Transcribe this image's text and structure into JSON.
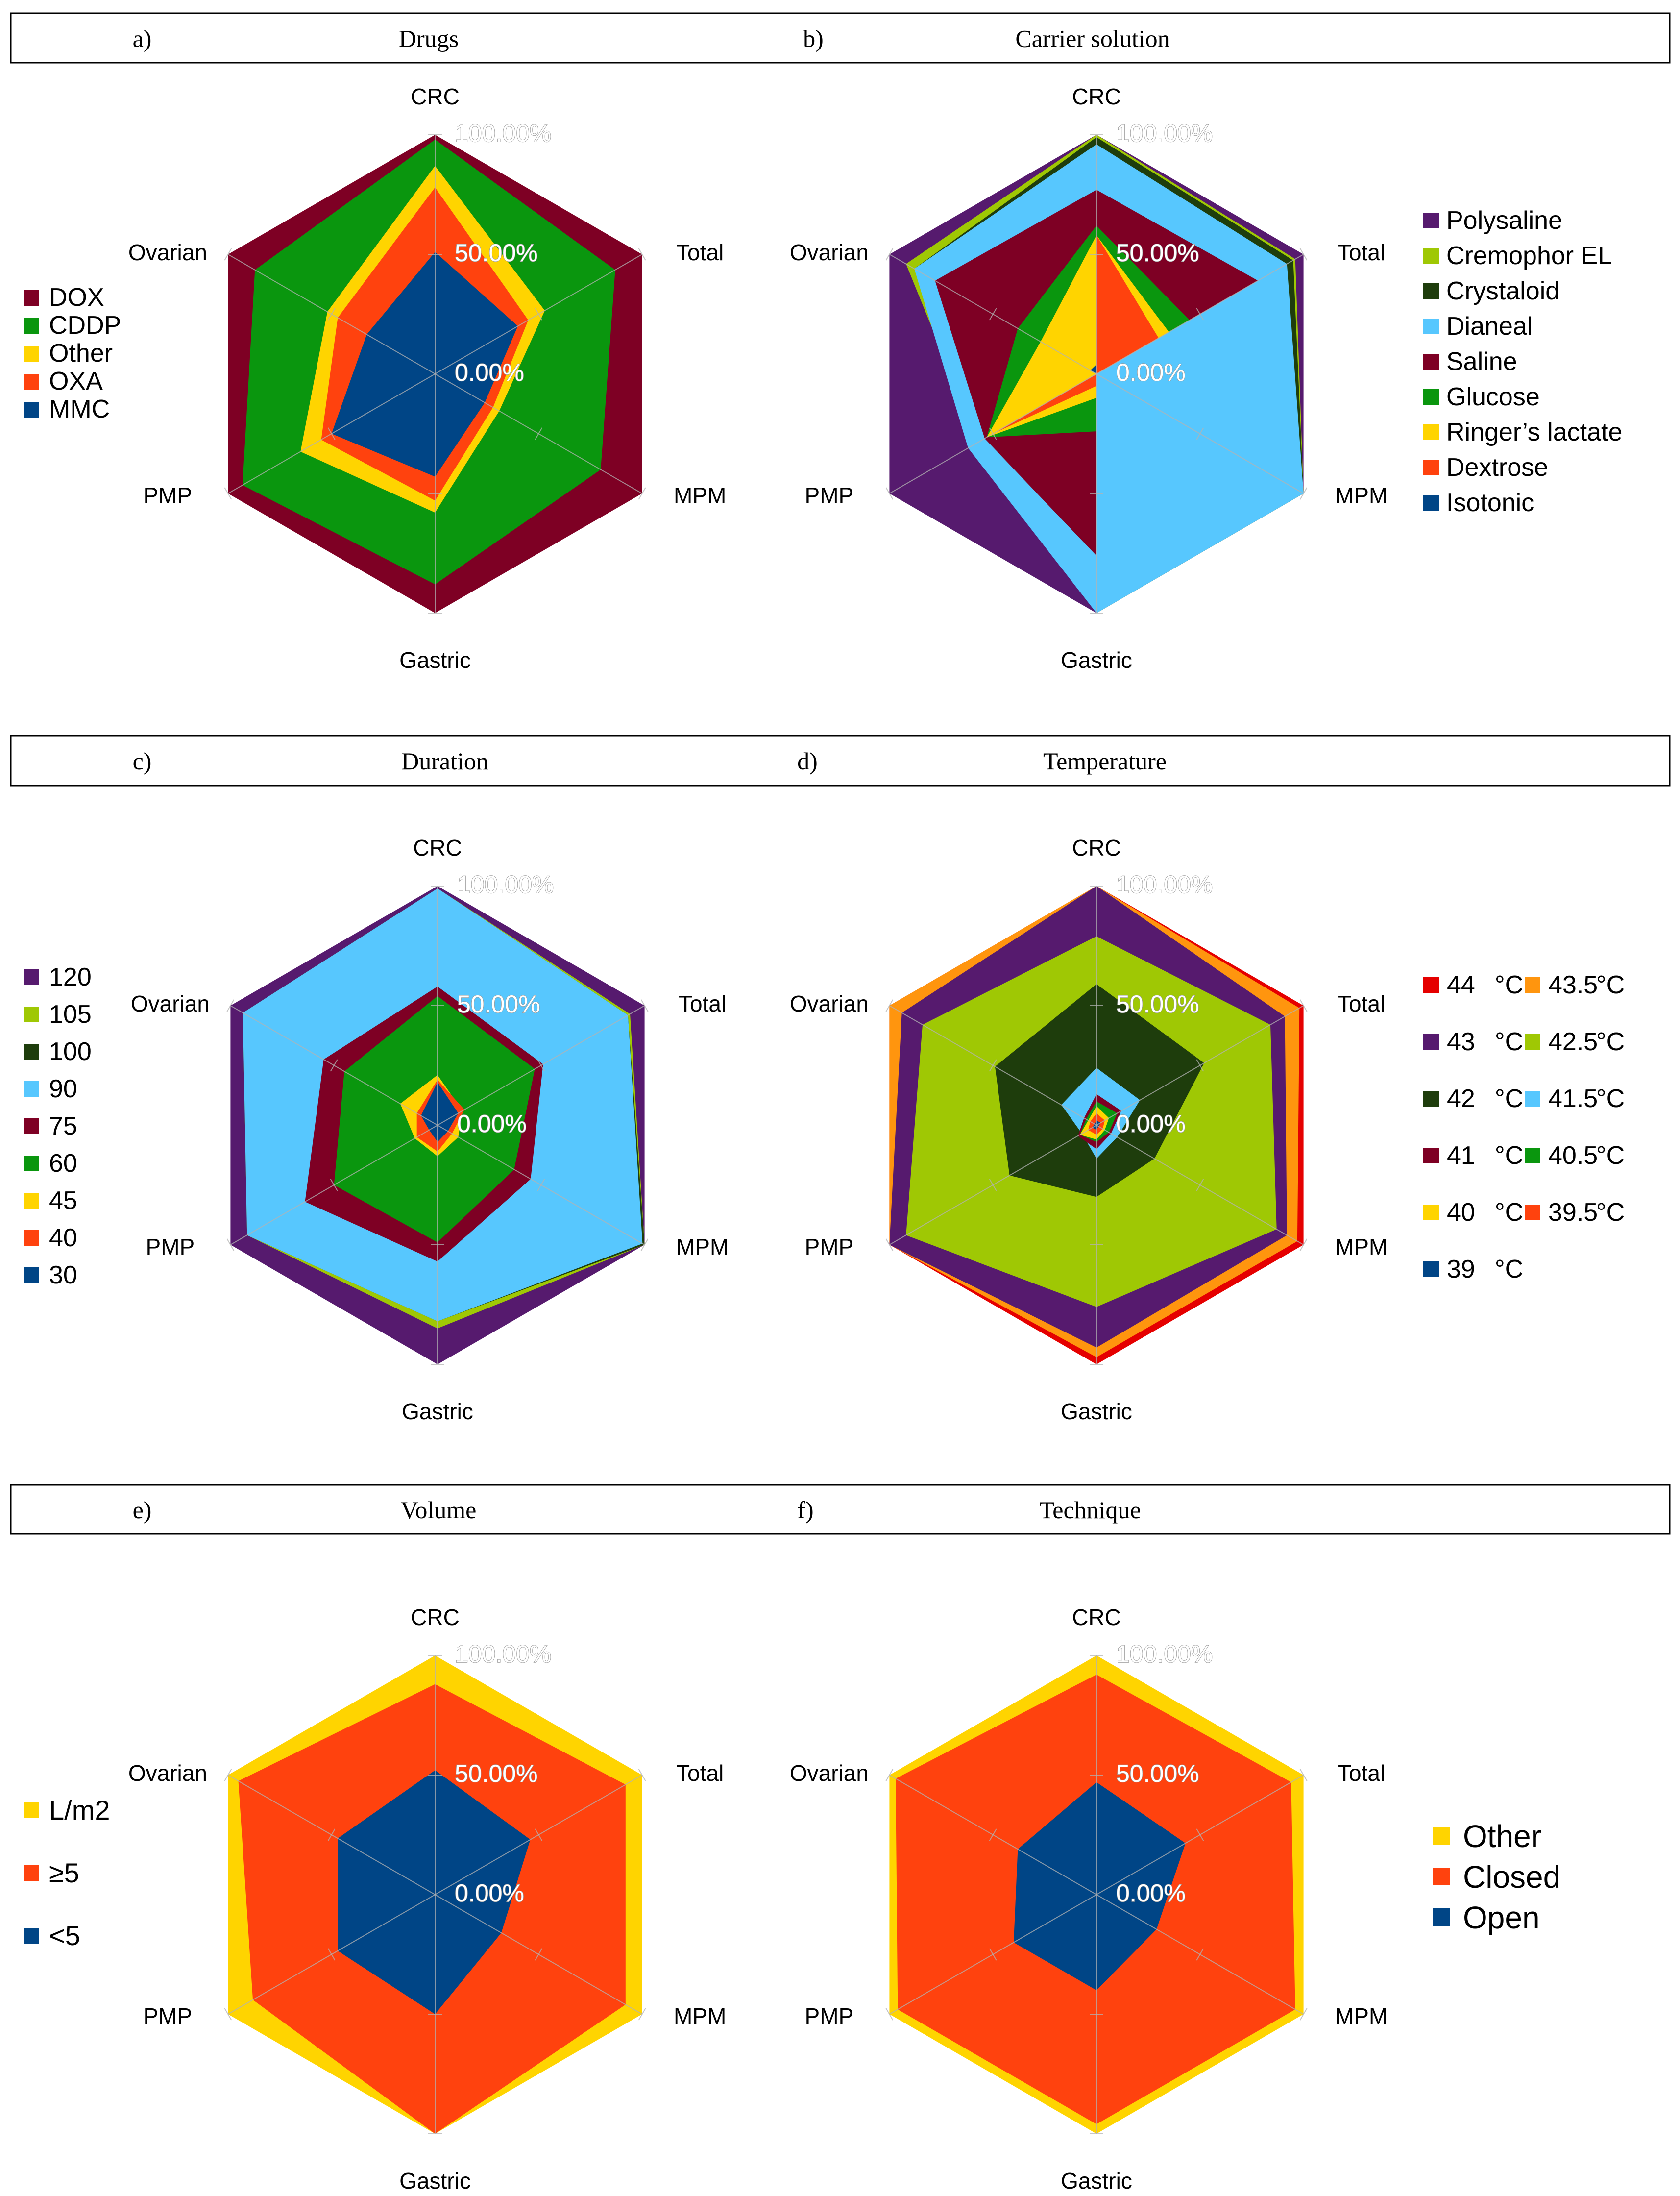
{
  "colors": {
    "purple": "#561a6e",
    "lime": "#9fc804",
    "darkgreen": "#1e3d0c",
    "skyblue": "#57c7fe",
    "darkred": "#7e0024",
    "green": "#0a960e",
    "yellow": "#ffd400",
    "orangered": "#ff420e",
    "navy": "#004586",
    "red": "#e50000",
    "orange": "#ff950e"
  },
  "chart_data": [
    {
      "type": "radar",
      "panel_label": "a)",
      "title": "Drugs",
      "axes": [
        "CRC",
        "Total",
        "MPM",
        "Gastric",
        "PMP",
        "Ovarian"
      ],
      "radial_ticks": [
        "0.00%",
        "50.00%",
        "100.00%"
      ],
      "ylim": [
        0,
        100
      ],
      "legend_position": "left",
      "series": [
        {
          "name": "DOX",
          "color": "darkred",
          "values": [
            100,
            100,
            100,
            100,
            100,
            100
          ]
        },
        {
          "name": "CDDP",
          "color": "green",
          "values": [
            98,
            87,
            80,
            88,
            93,
            87
          ]
        },
        {
          "name": "Other",
          "color": "yellow",
          "values": [
            87,
            53,
            31,
            58,
            65,
            52
          ]
        },
        {
          "name": "OXA",
          "color": "orangered",
          "values": [
            78,
            45,
            28,
            53,
            55,
            47
          ]
        },
        {
          "name": "MMC",
          "color": "navy",
          "values": [
            51,
            40,
            24,
            43,
            50,
            33
          ]
        }
      ]
    },
    {
      "type": "radar",
      "panel_label": "b)",
      "title": "Carrier solution",
      "axes": [
        "CRC",
        "Total",
        "MPM",
        "Gastric",
        "PMP",
        "Ovarian"
      ],
      "radial_ticks": [
        "0.00%",
        "50.00%",
        "100.00%"
      ],
      "ylim": [
        0,
        100
      ],
      "legend_position": "right",
      "series": [
        {
          "name": "Polysaline",
          "color": "purple",
          "values": [
            100,
            100,
            100,
            100,
            100,
            100
          ]
        },
        {
          "name": "Cremophor EL",
          "color": "lime",
          "values": [
            100,
            96,
            100,
            100,
            57,
            92
          ]
        },
        {
          "name": "Crystaloid",
          "color": "darkgreen",
          "values": [
            99,
            95,
            100,
            100,
            56,
            88
          ]
        },
        {
          "name": "Dianeal",
          "color": "skyblue",
          "values": [
            96,
            92,
            100,
            100,
            62,
            88
          ]
        },
        {
          "name": "Saline",
          "color": "darkred",
          "values": [
            77,
            78,
            0,
            76,
            54,
            78
          ]
        },
        {
          "name": "Glucose",
          "color": "green",
          "values": [
            62,
            45,
            0,
            24,
            53,
            38
          ]
        },
        {
          "name": "Ringer’s lactate",
          "color": "yellow",
          "values": [
            58,
            35,
            0,
            10,
            53,
            27
          ]
        },
        {
          "name": "Dextrose",
          "color": "orangered",
          "values": [
            58,
            30,
            0,
            5,
            50,
            0
          ]
        },
        {
          "name": "Isotonic",
          "color": "navy",
          "values": [
            4,
            0,
            0,
            0,
            0,
            3
          ]
        }
      ]
    },
    {
      "type": "radar",
      "panel_label": "c)",
      "title": "Duration",
      "axes": [
        "CRC",
        "Total",
        "MPM",
        "Gastric",
        "PMP",
        "Ovarian"
      ],
      "radial_ticks": [
        "0.00%",
        "50.00%",
        "100.00%"
      ],
      "ylim": [
        0,
        100
      ],
      "legend_position": "left",
      "series": [
        {
          "name": "120",
          "color": "purple",
          "values": [
            100,
            100,
            100,
            100,
            100,
            100
          ]
        },
        {
          "name": "105",
          "color": "lime",
          "values": [
            99,
            93,
            100,
            85,
            92,
            94
          ]
        },
        {
          "name": "100",
          "color": "darkgreen",
          "values": [
            99,
            92,
            100,
            82,
            92,
            94
          ]
        },
        {
          "name": "90",
          "color": "skyblue",
          "values": [
            99,
            92,
            99,
            82,
            92,
            94
          ]
        },
        {
          "name": "75",
          "color": "darkred",
          "values": [
            58,
            51,
            45,
            57,
            64,
            55
          ]
        },
        {
          "name": "60",
          "color": "green",
          "values": [
            54,
            47,
            37,
            49,
            50,
            45
          ]
        },
        {
          "name": "45",
          "color": "yellow",
          "values": [
            21,
            12,
            10,
            13,
            11,
            18
          ]
        },
        {
          "name": "40",
          "color": "orangered",
          "values": [
            19,
            13,
            7,
            11,
            10,
            10
          ]
        },
        {
          "name": "30",
          "color": "navy",
          "values": [
            18,
            10,
            5,
            7,
            4,
            8
          ]
        }
      ]
    },
    {
      "type": "radar",
      "panel_label": "d)",
      "title": "Temperature",
      "axes": [
        "CRC",
        "Total",
        "MPM",
        "Gastric",
        "PMP",
        "Ovarian"
      ],
      "radial_ticks": [
        "0.00%",
        "50.00%",
        "100.00%"
      ],
      "ylim": [
        0,
        100
      ],
      "legend_position": "right",
      "series": [
        {
          "name": "44",
          "color": "red",
          "values": [
            100,
            100,
            100,
            100,
            100,
            100
          ]
        },
        {
          "name": "43.5",
          "color": "orange",
          "values": [
            100,
            98,
            97,
            97,
            100,
            100
          ]
        },
        {
          "name": "43",
          "color": "purple",
          "values": [
            100,
            91,
            92,
            93,
            100,
            94
          ]
        },
        {
          "name": "42.5",
          "color": "lime",
          "values": [
            79,
            84,
            87,
            76,
            92,
            84
          ]
        },
        {
          "name": "42",
          "color": "darkgreen",
          "values": [
            59,
            52,
            28,
            30,
            42,
            49
          ]
        },
        {
          "name": "41.5",
          "color": "skyblue",
          "values": [
            24,
            21,
            10,
            14,
            7,
            17
          ]
        },
        {
          "name": "41",
          "color": "darkred",
          "values": [
            13,
            12,
            7,
            10,
            9,
            6
          ]
        },
        {
          "name": "40.5",
          "color": "green",
          "values": [
            10,
            10,
            6,
            7,
            8,
            5
          ]
        },
        {
          "name": "40",
          "color": "yellow",
          "values": [
            8,
            6,
            4,
            6,
            8,
            4
          ]
        },
        {
          "name": "39.5",
          "color": "orangered",
          "values": [
            5,
            4,
            3,
            4,
            4,
            3
          ]
        },
        {
          "name": "39",
          "color": "navy",
          "values": [
            2,
            2,
            1,
            2,
            2,
            1
          ]
        }
      ],
      "legend_unit": "°C"
    },
    {
      "type": "radar",
      "panel_label": "e)",
      "title": "Volume",
      "axes": [
        "CRC",
        "Total",
        "MPM",
        "Gastric",
        "PMP",
        "Ovarian"
      ],
      "radial_ticks": [
        "0.00%",
        "50.00%",
        "100.00%"
      ],
      "ylim": [
        0,
        100
      ],
      "legend_position": "left",
      "series": [
        {
          "name": "L/m2",
          "color": "yellow",
          "values": [
            100,
            100,
            100,
            100,
            100,
            100
          ]
        },
        {
          "name": "≥5",
          "color": "orangered",
          "values": [
            88,
            92,
            92,
            100,
            88,
            95
          ]
        },
        {
          "name": "<5",
          "color": "navy",
          "values": [
            52,
            46,
            32,
            50,
            47,
            47
          ]
        }
      ]
    },
    {
      "type": "radar",
      "panel_label": "f)",
      "title": "Technique",
      "axes": [
        "CRC",
        "Total",
        "MPM",
        "Gastric",
        "PMP",
        "Ovarian"
      ],
      "radial_ticks": [
        "0.00%",
        "50.00%",
        "100.00%"
      ],
      "ylim": [
        0,
        100
      ],
      "legend_position": "right",
      "series": [
        {
          "name": "Other",
          "color": "yellow",
          "values": [
            100,
            100,
            100,
            100,
            100,
            100
          ]
        },
        {
          "name": "Closed",
          "color": "orangered",
          "values": [
            92,
            94,
            96,
            96,
            96,
            97
          ]
        },
        {
          "name": "Open",
          "color": "navy",
          "values": [
            47,
            43,
            29,
            40,
            40,
            38
          ]
        }
      ]
    }
  ]
}
